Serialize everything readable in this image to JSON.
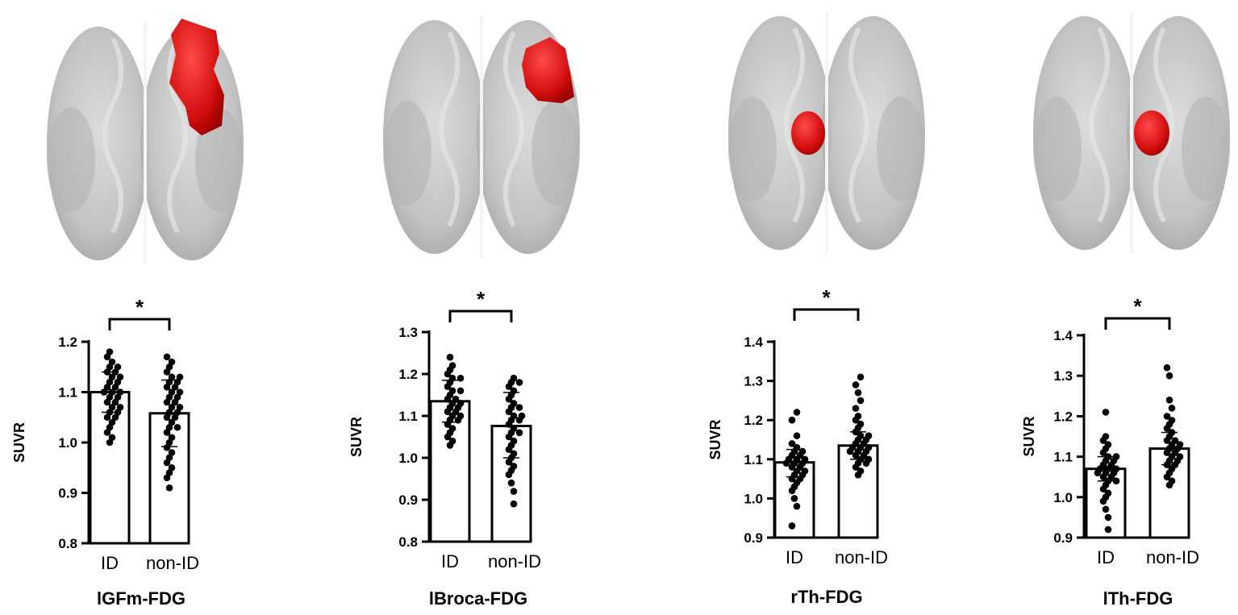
{
  "chart_data": [
    {
      "type": "bar",
      "title": "lGFm-FDG",
      "xlabel": "",
      "ylabel": "SUVR",
      "categories": [
        "ID",
        "non-ID"
      ],
      "ylim": [
        0.8,
        1.2
      ],
      "yticks": [
        "0.8",
        "0.9",
        "1.0",
        "1.1",
        "1.2"
      ],
      "significance": "*",
      "grid": false,
      "series": [
        {
          "values": [
            1.1,
            1.058
          ],
          "error": [
            [
              1.06,
              1.14
            ],
            [
              0.992,
              1.124
            ]
          ],
          "points": [
            [
              1.18,
              1.17,
              1.16,
              1.15,
              1.15,
              1.14,
              1.14,
              1.13,
              1.13,
              1.12,
              1.12,
              1.11,
              1.11,
              1.1,
              1.1,
              1.1,
              1.09,
              1.09,
              1.08,
              1.08,
              1.07,
              1.07,
              1.06,
              1.06,
              1.05,
              1.05,
              1.04,
              1.03,
              1.02,
              1.01,
              1.0
            ],
            [
              1.17,
              1.16,
              1.15,
              1.14,
              1.13,
              1.13,
              1.12,
              1.12,
              1.11,
              1.11,
              1.1,
              1.1,
              1.09,
              1.09,
              1.08,
              1.08,
              1.07,
              1.07,
              1.06,
              1.06,
              1.05,
              1.05,
              1.04,
              1.03,
              1.03,
              1.02,
              1.01,
              1.0,
              0.99,
              0.98,
              0.97,
              0.96,
              0.95,
              0.94,
              0.93,
              0.91
            ]
          ]
        }
      ]
    },
    {
      "type": "bar",
      "title": "lBroca-FDG",
      "xlabel": "",
      "ylabel": "SUVR",
      "categories": [
        "ID",
        "non-ID"
      ],
      "ylim": [
        0.8,
        1.3
      ],
      "yticks": [
        "0.8",
        "0.9",
        "1.0",
        "1.1",
        "1.2",
        "1.3"
      ],
      "significance": "*",
      "grid": false,
      "series": [
        {
          "values": [
            1.135,
            1.076
          ],
          "error": [
            [
              1.085,
              1.185
            ],
            [
              1.0,
              1.156
            ]
          ],
          "points": [
            [
              1.24,
              1.22,
              1.21,
              1.2,
              1.19,
              1.19,
              1.18,
              1.17,
              1.16,
              1.16,
              1.15,
              1.14,
              1.14,
              1.13,
              1.13,
              1.12,
              1.12,
              1.11,
              1.11,
              1.1,
              1.1,
              1.09,
              1.09,
              1.08,
              1.07,
              1.06,
              1.05,
              1.04,
              1.03
            ],
            [
              1.19,
              1.18,
              1.18,
              1.17,
              1.16,
              1.15,
              1.14,
              1.13,
              1.12,
              1.12,
              1.11,
              1.1,
              1.1,
              1.09,
              1.09,
              1.08,
              1.07,
              1.06,
              1.06,
              1.05,
              1.04,
              1.03,
              1.02,
              1.01,
              1.0,
              0.99,
              0.98,
              0.97,
              0.96,
              0.94,
              0.92,
              0.89
            ]
          ]
        }
      ]
    },
    {
      "type": "bar",
      "title": "rTh-FDG",
      "xlabel": "",
      "ylabel": "SUVR",
      "categories": [
        "ID",
        "non-ID"
      ],
      "ylim": [
        0.9,
        1.4
      ],
      "yticks": [
        "0.9",
        "1.0",
        "1.1",
        "1.2",
        "1.3",
        "1.4"
      ],
      "significance": "*",
      "grid": false,
      "series": [
        {
          "values": [
            1.092,
            1.135
          ],
          "error": [
            [
              1.055,
              1.125
            ],
            [
              1.1,
              1.17
            ]
          ],
          "points": [
            [
              1.22,
              1.2,
              1.16,
              1.14,
              1.13,
              1.12,
              1.12,
              1.11,
              1.11,
              1.1,
              1.1,
              1.1,
              1.09,
              1.09,
              1.09,
              1.08,
              1.08,
              1.07,
              1.07,
              1.06,
              1.06,
              1.05,
              1.05,
              1.04,
              1.03,
              1.02,
              1.0,
              0.98,
              0.93
            ],
            [
              1.31,
              1.29,
              1.27,
              1.25,
              1.23,
              1.21,
              1.2,
              1.19,
              1.18,
              1.17,
              1.16,
              1.16,
              1.15,
              1.15,
              1.14,
              1.14,
              1.13,
              1.13,
              1.13,
              1.12,
              1.12,
              1.12,
              1.11,
              1.11,
              1.1,
              1.1,
              1.09,
              1.09,
              1.08,
              1.07,
              1.06
            ]
          ]
        }
      ]
    },
    {
      "type": "bar",
      "title": "lTh-FDG",
      "xlabel": "",
      "ylabel": "SUVR",
      "categories": [
        "ID",
        "non-ID"
      ],
      "ylim": [
        0.9,
        1.4
      ],
      "yticks": [
        "0.9",
        "1.0",
        "1.1",
        "1.2",
        "1.3",
        "1.4"
      ],
      "significance": "*",
      "grid": false,
      "series": [
        {
          "values": [
            1.07,
            1.12
          ],
          "error": [
            [
              1.04,
              1.1
            ],
            [
              1.08,
              1.16
            ]
          ],
          "points": [
            [
              1.21,
              1.15,
              1.14,
              1.13,
              1.12,
              1.11,
              1.1,
              1.1,
              1.09,
              1.09,
              1.08,
              1.08,
              1.07,
              1.07,
              1.07,
              1.06,
              1.06,
              1.06,
              1.05,
              1.05,
              1.04,
              1.04,
              1.03,
              1.02,
              1.01,
              1.0,
              0.99,
              0.97,
              0.95,
              0.92
            ],
            [
              1.32,
              1.3,
              1.24,
              1.22,
              1.2,
              1.19,
              1.18,
              1.17,
              1.16,
              1.15,
              1.14,
              1.14,
              1.13,
              1.13,
              1.12,
              1.12,
              1.11,
              1.11,
              1.1,
              1.1,
              1.09,
              1.09,
              1.08,
              1.08,
              1.07,
              1.06,
              1.05,
              1.04,
              1.03
            ]
          ]
        }
      ]
    }
  ],
  "highlight_color": "#e01212",
  "brain_color": "#c9c9c9"
}
